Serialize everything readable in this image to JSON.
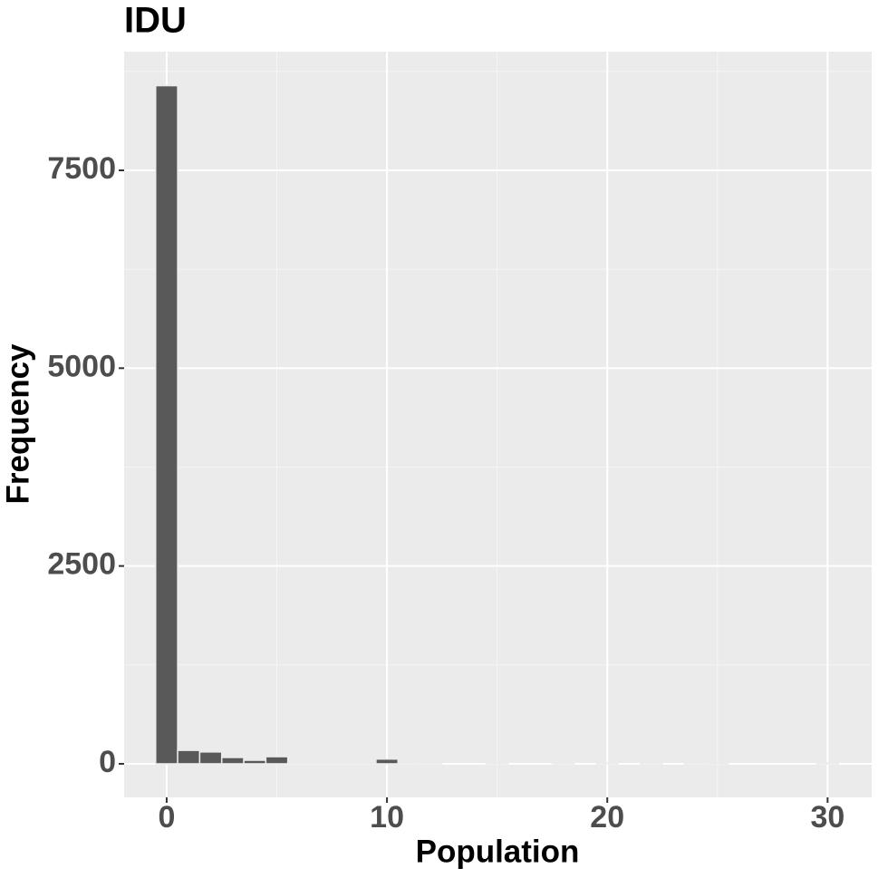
{
  "chart_data": {
    "type": "histogram",
    "title": "IDU",
    "x_label": "Population",
    "y_label": "Frequency",
    "bins": [
      -0.5,
      0.5,
      1.5,
      2.5,
      3.5,
      4.5,
      5.5,
      6.5,
      7.5,
      8.5,
      9.5,
      10.5,
      11.5,
      12.5,
      13.5,
      14.5,
      15.5,
      16.5,
      17.5,
      18.5,
      19.5,
      20.5,
      21.5,
      22.5,
      23.5,
      24.5,
      25.5,
      26.5,
      27.5,
      28.5,
      29.5,
      30.5
    ],
    "values": [
      8570,
      170,
      150,
      80,
      45,
      90,
      10,
      10,
      5,
      3,
      60,
      2,
      2,
      0,
      0,
      8,
      0,
      0,
      3,
      0,
      10,
      0,
      2,
      0,
      2,
      3,
      0,
      0,
      0,
      0,
      8
    ],
    "color": "#595959",
    "xlim": [
      -1.93,
      32.0
    ],
    "xticks": [
      0,
      10,
      20,
      30
    ],
    "ylim": [
      -424,
      9000
    ],
    "yticks": [
      0,
      2500,
      5000,
      7500
    ],
    "grid": true
  }
}
